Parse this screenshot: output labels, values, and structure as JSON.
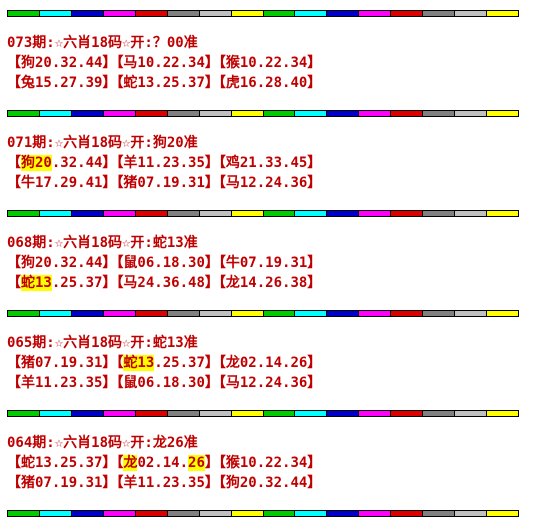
{
  "bar_colors": [
    "#00cc00",
    "#00ffff",
    "#0000cc",
    "#ff00ff",
    "#dd0000",
    "#808080",
    "#c0c0c0",
    "#ffff00",
    "#00cc00",
    "#00ffff",
    "#0000cc",
    "#ff00ff",
    "#dd0000",
    "#808080",
    "#c0c0c0",
    "#ffff00"
  ],
  "highlight_color": "#ffff00",
  "text_color": "#c00000",
  "blocks": [
    {
      "title": "073期:☆六肖18码☆开:？00准",
      "rows": [
        [
          [
            {
              "t": "【狗20.32.44】"
            }
          ],
          [
            {
              "t": "【马10.22.34】"
            }
          ],
          [
            {
              "t": "【猴10.22.34】"
            }
          ]
        ],
        [
          [
            {
              "t": "【兔15.27.39】"
            }
          ],
          [
            {
              "t": "【蛇13.25.37】"
            }
          ],
          [
            {
              "t": "【虎16.28.40】"
            }
          ]
        ]
      ]
    },
    {
      "title": "071期:☆六肖18码☆开:狗20准",
      "rows": [
        [
          [
            {
              "t": "【"
            },
            {
              "t": "狗20",
              "h": true
            },
            {
              "t": ".32.44】"
            }
          ],
          [
            {
              "t": "【羊11.23.35】"
            }
          ],
          [
            {
              "t": "【鸡21.33.45】"
            }
          ]
        ],
        [
          [
            {
              "t": "【牛17.29.41】"
            }
          ],
          [
            {
              "t": "【猪07.19.31】"
            }
          ],
          [
            {
              "t": "【马12.24.36】"
            }
          ]
        ]
      ]
    },
    {
      "title": "068期:☆六肖18码☆开:蛇13准",
      "rows": [
        [
          [
            {
              "t": "【狗20.32.44】"
            }
          ],
          [
            {
              "t": "【鼠06.18.30】"
            }
          ],
          [
            {
              "t": "【牛07.19.31】"
            }
          ]
        ],
        [
          [
            {
              "t": "【"
            },
            {
              "t": "蛇13",
              "h": true
            },
            {
              "t": ".25.37】"
            }
          ],
          [
            {
              "t": "【马24.36.48】"
            }
          ],
          [
            {
              "t": "【龙14.26.38】"
            }
          ]
        ]
      ]
    },
    {
      "title": "065期:☆六肖18码☆开:蛇13准",
      "rows": [
        [
          [
            {
              "t": "【猪07.19.31】"
            }
          ],
          [
            {
              "t": "【"
            },
            {
              "t": "蛇13",
              "h": true
            },
            {
              "t": ".25.37】"
            }
          ],
          [
            {
              "t": "【龙02.14.26】"
            }
          ]
        ],
        [
          [
            {
              "t": "【羊11.23.35】"
            }
          ],
          [
            {
              "t": "【鼠06.18.30】"
            }
          ],
          [
            {
              "t": "【马12.24.36】"
            }
          ]
        ]
      ]
    },
    {
      "title": "064期:☆六肖18码☆开:龙26准",
      "rows": [
        [
          [
            {
              "t": "【蛇13.25.37】"
            }
          ],
          [
            {
              "t": "【"
            },
            {
              "t": "龙",
              "h": true
            },
            {
              "t": "02.14."
            },
            {
              "t": "26",
              "h": true
            },
            {
              "t": "】"
            }
          ],
          [
            {
              "t": "【猴10.22.34】"
            }
          ]
        ],
        [
          [
            {
              "t": "【猪07.19.31】"
            }
          ],
          [
            {
              "t": "【羊11.23.35】"
            }
          ],
          [
            {
              "t": "【狗20.32.44】"
            }
          ]
        ]
      ]
    }
  ]
}
